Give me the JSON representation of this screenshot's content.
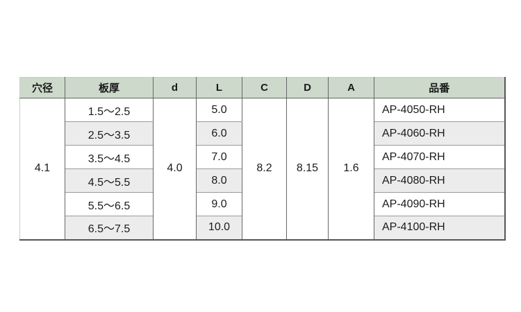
{
  "page": {
    "background": "#ffffff"
  },
  "table": {
    "headers": {
      "hole_diameter": "穴径",
      "thickness": "板厚",
      "d": "d",
      "L": "L",
      "C": "C",
      "D": "D",
      "A": "A",
      "part_number": "品番"
    },
    "shared_values": {
      "hole_diameter": "4.1",
      "d": "4.0",
      "C": "8.2",
      "D": "8.15",
      "A": "1.6"
    },
    "rows": [
      {
        "thickness": "1.5～2.5",
        "L": "5.0",
        "part_number": "AP-4050-RH"
      },
      {
        "thickness": "2.5～3.5",
        "L": "6.0",
        "part_number": "AP-4060-RH"
      },
      {
        "thickness": "3.5～4.5",
        "L": "7.0",
        "part_number": "AP-4070-RH"
      },
      {
        "thickness": "4.5～5.5",
        "L": "8.0",
        "part_number": "AP-4080-RH"
      },
      {
        "thickness": "5.5～6.5",
        "L": "9.0",
        "part_number": "AP-4090-RH"
      },
      {
        "thickness": "6.5～7.5",
        "L": "10.0",
        "part_number": "AP-4100-RH"
      }
    ],
    "colors": {
      "header_bg": "#cdd9cb",
      "row_alt_bg": "#ececec",
      "border_dark": "#555555",
      "border_mid": "#666666",
      "border_light": "#999999",
      "edge_light": "#cccccc"
    }
  }
}
